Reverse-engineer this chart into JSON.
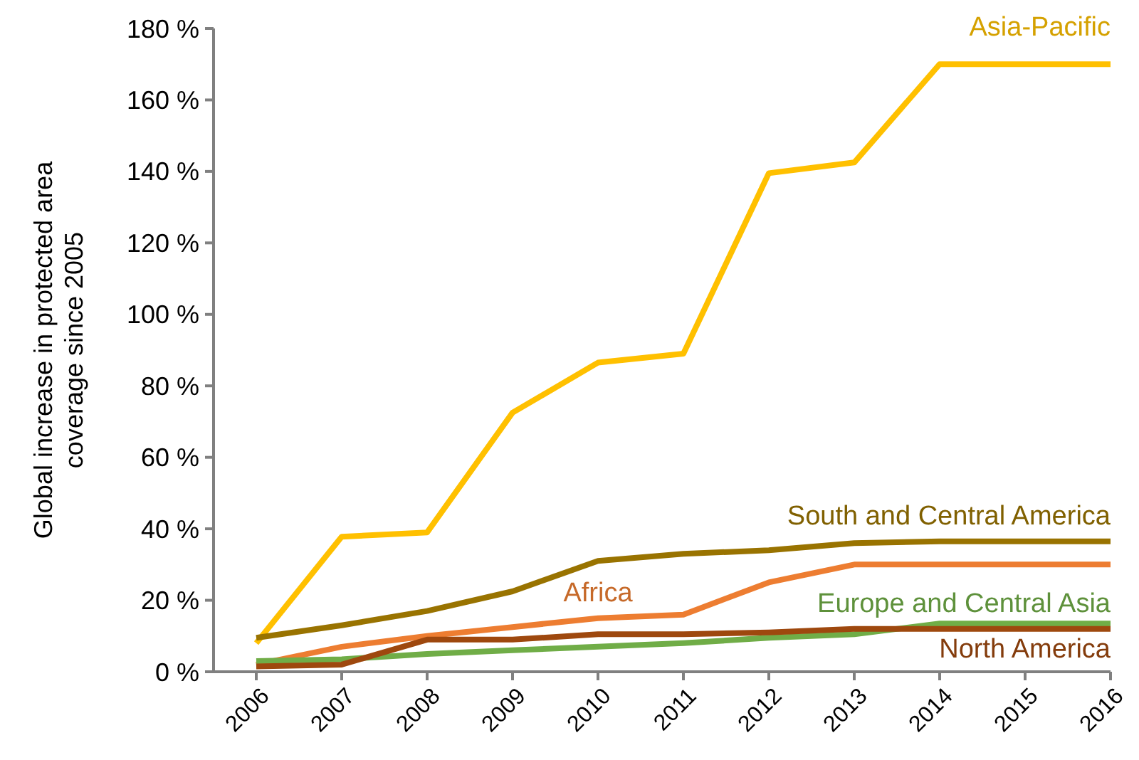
{
  "chart_data": {
    "type": "line",
    "ylabel": "Global increase in protected area coverage since 2005",
    "categories": [
      "2006",
      "2007",
      "2008",
      "2009",
      "2010",
      "2011",
      "2012",
      "2013",
      "2014",
      "2015",
      "2016"
    ],
    "ylim": [
      0,
      180
    ],
    "yticks": [
      {
        "value": 0,
        "label": "0 %"
      },
      {
        "value": 20,
        "label": "20 %"
      },
      {
        "value": 40,
        "label": "40 %"
      },
      {
        "value": 60,
        "label": "60 %"
      },
      {
        "value": 80,
        "label": "80 %"
      },
      {
        "value": 100,
        "label": "100 %"
      },
      {
        "value": 120,
        "label": "120 %"
      },
      {
        "value": 140,
        "label": "140 %"
      },
      {
        "value": 160,
        "label": "160 %"
      },
      {
        "value": 180,
        "label": "180 %"
      }
    ],
    "grid": false,
    "marker": "none",
    "line_style": "solid",
    "series": [
      {
        "name": "Asia-Pacific",
        "color": "#ffc000",
        "values": [
          8,
          37.8,
          39,
          72.5,
          86.5,
          89,
          139.5,
          142.5,
          170,
          170,
          170
        ]
      },
      {
        "name": "South and Central America",
        "color": "#997300",
        "values": [
          9.5,
          13,
          17,
          22.5,
          31,
          33,
          34,
          36,
          36.5,
          36.5,
          36.5
        ]
      },
      {
        "name": "Africa",
        "color": "#ed7d31",
        "values": [
          2,
          7,
          10,
          12.5,
          15,
          16,
          25,
          30,
          30,
          30,
          30
        ]
      },
      {
        "name": "Europe and Central Asia",
        "color": "#70ad47",
        "values": [
          3,
          3.5,
          5,
          6,
          7,
          8,
          9.5,
          10.5,
          13.5,
          13.5,
          13.5
        ]
      },
      {
        "name": "North America",
        "color": "#9e480e",
        "values": [
          1.5,
          2,
          9,
          9,
          10.5,
          10.5,
          11,
          12,
          12,
          12,
          12
        ]
      }
    ]
  }
}
